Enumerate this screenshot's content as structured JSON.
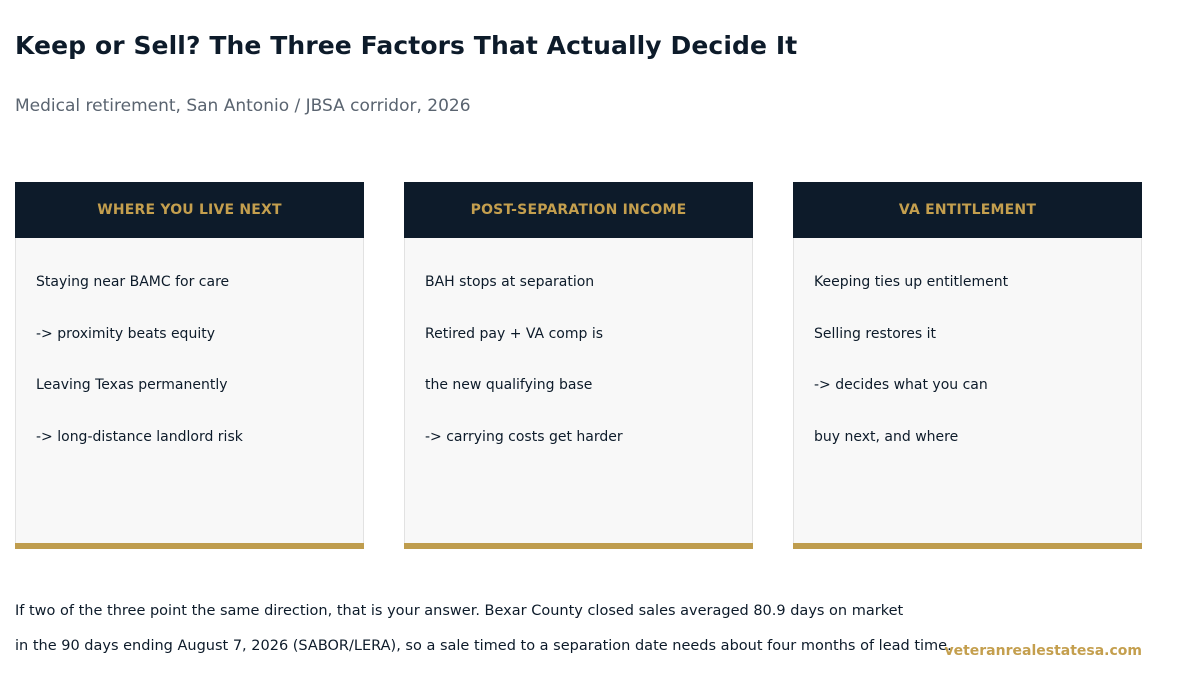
{
  "header": {
    "title": "Keep or Sell? The Three Factors That Actually Decide It",
    "subtitle": "Medical retirement, San Antonio / JBSA corridor, 2026"
  },
  "cards": [
    {
      "heading": "WHERE YOU LIVE NEXT",
      "lines": [
        "Staying near BAMC for care",
        "-> proximity beats equity",
        "Leaving Texas permanently",
        "-> long-distance landlord risk"
      ]
    },
    {
      "heading": "POST-SEPARATION INCOME",
      "lines": [
        "BAH stops at separation",
        "Retired pay + VA comp is",
        "the new qualifying base",
        "-> carrying costs get harder"
      ]
    },
    {
      "heading": "VA ENTITLEMENT",
      "lines": [
        "Keeping ties up entitlement",
        "Selling restores it",
        "-> decides what you can",
        "buy next, and where"
      ]
    }
  ],
  "footnote": {
    "line1": "If two of the three point the same direction, that is your answer. Bexar County closed sales averaged 80.9 days on market",
    "line2": "in the 90 days ending August 7, 2026 (SABOR/LERA), so a sale timed to a separation date needs about four months of lead time."
  },
  "footer": {
    "site": "veteranrealestatesa.com"
  },
  "colors": {
    "navy": "#0d1b2a",
    "gold": "#c49f4e",
    "card_bg": "#f8f8f8",
    "muted_text": "#5a6470"
  }
}
